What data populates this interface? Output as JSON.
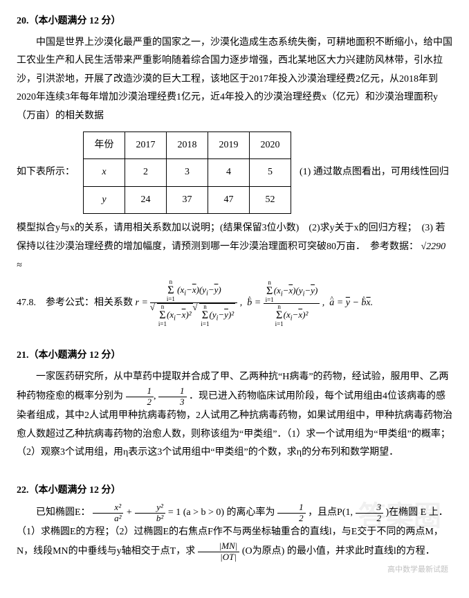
{
  "p20": {
    "title": "20.（本小题满分 12 分）",
    "para1": "中国是世界上沙漠化最严重的国家之一，沙漠化造成生态系统失衡，可耕地面积不断缩小，给中国工农业生产和人民生活带来严重影响随着综合国力逐步增强，西北某地区大力兴建防风林带，引水拉沙，引洪淤地，开展了改造沙漠的巨大工程，该地区于2017年投入沙漠治理经费2亿元，从2018年到2020年连续3年每年增加沙漠治理经费1亿元，近4年投入的沙漠治理经费x（亿元）和沙漠治理面积y（万亩）的相关数据",
    "table_left": "如下表所示：",
    "table_right": "(1) 通过散点图看出，可用线性回归",
    "table": {
      "headers": [
        "年份",
        "2017",
        "2018",
        "2019",
        "2020"
      ],
      "row_x_label": "x",
      "row_x": [
        "2",
        "3",
        "4",
        "5"
      ],
      "row_y_label": "y",
      "row_y": [
        "24",
        "37",
        "47",
        "52"
      ],
      "border_color": "#000000",
      "cell_padding": "6px 14px"
    },
    "para2_a": "模型拟合y与x的关系，请用相关系数加以说明；(结果保留3位小数)　(2)求y关于x的回归方程；　(3) 若保持以往沙漠治理经费的增加幅度，请预测到哪一年沙漠治理面积可突破80万亩．　参考数据：",
    "ref_data": "√2290 ≈",
    "para2_b": "47.8.　参考公式：相关系数",
    "formula_note": "r、b̂、â 公式（含 Σ、均值、平方根）",
    "colors": {
      "text": "#000000",
      "bg": "#ffffff"
    }
  },
  "p21": {
    "title": "21.（本小题满分 12 分）",
    "body_a": "一家医药研究所，从中草药中提取并合成了甲、乙两种抗“H病毒”的药物，经试验，服用甲、乙两种药物痊愈的概率分别为",
    "frac1_num": "1",
    "frac1_den": "2",
    "frac2_num": "1",
    "frac2_den": "3",
    "body_b": "．现已进入药物临床试用阶段，每个试用组由4位该病毒的感染者组成，其中2人试用甲种抗病毒药物，2人试用乙种抗病毒药物，如果试用组中，甲种抗病毒药物治愈人数超过乙种抗病毒药物的治愈人数，则称该组为“甲类组”．（1）求一个试用组为“甲类组”的概率；（2）观察3个试用组，用η表示这3个试用组中“甲类组”的个数，求η的分布列和数学期望．"
  },
  "p22": {
    "title": "22.（本小题满分 12 分）",
    "body_a": "已知椭圆E：",
    "ellipse_lhs_x": "x²",
    "ellipse_lhs_a": "a²",
    "ellipse_lhs_y": "y²",
    "ellipse_lhs_b": "b²",
    "body_b": " = 1 (a > b > 0) 的离心率为",
    "ecc_num": "1",
    "ecc_den": "2",
    "body_c": "，且点P(1,",
    "p_num": "3",
    "p_den": "2",
    "body_d": ")在椭圆 E 上．（1）求椭圆E的方程；（2）过椭圆E的右焦点F作不与两坐标轴重合的直线l，与E交于不同的两点M，N，线段MN的中垂线与y轴相交于点T，求",
    "ratio_num": "|MN|",
    "ratio_den": "|OT|",
    "body_e": "(O为原点) 的最小值，并求此时直线l的方程．"
  },
  "watermark": "答案圈",
  "wm_small": "高中数学最新试题"
}
